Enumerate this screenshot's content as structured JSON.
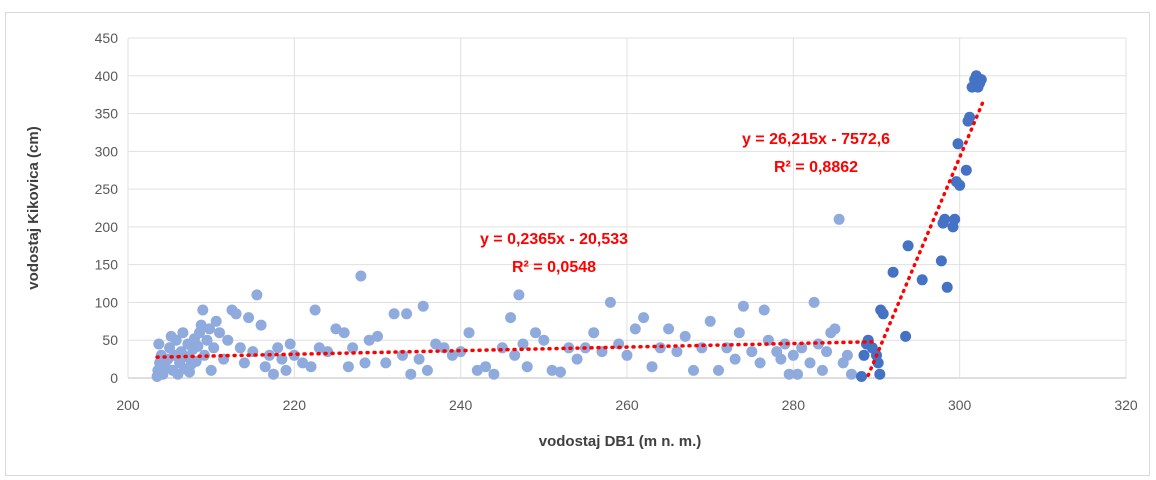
{
  "chart_data": {
    "type": "scatter",
    "xlabel": "vodostaj DB1  (m n. m.)",
    "ylabel": "vodostaj Kikovica  (cm)",
    "xlim": [
      200,
      320
    ],
    "ylim": [
      0,
      450
    ],
    "xticks": [
      "200",
      "220",
      "240",
      "260",
      "280",
      "300",
      "320"
    ],
    "yticks": [
      "0",
      "50",
      "100",
      "150",
      "200",
      "250",
      "300",
      "350",
      "400",
      "450"
    ],
    "grid": "vertical-and-horizontal",
    "colors": {
      "series_low": "#8faadc",
      "series_high": "#4472c4",
      "trendline": "#ff0000"
    },
    "series": [
      {
        "points": [
          [
            203.5,
            2
          ],
          [
            203.6,
            10
          ],
          [
            203.8,
            20
          ],
          [
            204,
            30
          ],
          [
            203.7,
            45
          ],
          [
            204.2,
            5
          ],
          [
            204.5,
            15
          ],
          [
            204.8,
            25
          ],
          [
            205,
            40
          ],
          [
            205.2,
            55
          ],
          [
            205.4,
            10
          ],
          [
            205.6,
            30
          ],
          [
            205.8,
            50
          ],
          [
            206,
            5
          ],
          [
            206.2,
            20
          ],
          [
            206.4,
            35
          ],
          [
            206.6,
            60
          ],
          [
            206.8,
            12
          ],
          [
            207,
            28
          ],
          [
            207.2,
            45
          ],
          [
            207.4,
            8
          ],
          [
            207.6,
            18
          ],
          [
            207.8,
            38
          ],
          [
            208,
            52
          ],
          [
            208.2,
            22
          ],
          [
            208.4,
            42
          ],
          [
            208.6,
            60
          ],
          [
            208.8,
            70
          ],
          [
            209,
            90
          ],
          [
            209.2,
            30
          ],
          [
            209.5,
            50
          ],
          [
            209.8,
            65
          ],
          [
            210,
            10
          ],
          [
            210.3,
            40
          ],
          [
            210.6,
            75
          ],
          [
            211,
            60
          ],
          [
            211.5,
            25
          ],
          [
            212,
            50
          ],
          [
            212.5,
            90
          ],
          [
            213,
            85
          ],
          [
            213.5,
            40
          ],
          [
            214,
            20
          ],
          [
            214.5,
            80
          ],
          [
            215,
            35
          ],
          [
            215.5,
            110
          ],
          [
            216,
            70
          ],
          [
            216.5,
            15
          ],
          [
            217,
            30
          ],
          [
            217.5,
            5
          ],
          [
            218,
            40
          ],
          [
            218.5,
            25
          ],
          [
            219,
            10
          ],
          [
            219.5,
            45
          ],
          [
            220,
            30
          ],
          [
            221,
            20
          ],
          [
            222,
            15
          ],
          [
            222.5,
            90
          ],
          [
            223,
            40
          ],
          [
            224,
            35
          ],
          [
            225,
            65
          ],
          [
            226,
            60
          ],
          [
            226.5,
            15
          ],
          [
            227,
            40
          ],
          [
            228,
            135
          ],
          [
            228.5,
            20
          ],
          [
            229,
            50
          ],
          [
            230,
            55
          ],
          [
            231,
            20
          ],
          [
            232,
            85
          ],
          [
            233,
            30
          ],
          [
            233.5,
            85
          ],
          [
            234,
            5
          ],
          [
            235,
            25
          ],
          [
            235.5,
            95
          ],
          [
            236,
            10
          ],
          [
            237,
            45
          ],
          [
            238,
            40
          ],
          [
            239,
            30
          ],
          [
            240,
            35
          ],
          [
            241,
            60
          ],
          [
            242,
            10
          ],
          [
            243,
            15
          ],
          [
            244,
            5
          ],
          [
            245,
            40
          ],
          [
            246,
            80
          ],
          [
            246.5,
            30
          ],
          [
            247,
            110
          ],
          [
            247.5,
            45
          ],
          [
            248,
            15
          ],
          [
            249,
            60
          ],
          [
            250,
            50
          ],
          [
            251,
            10
          ],
          [
            252,
            8
          ],
          [
            253,
            40
          ],
          [
            254,
            25
          ],
          [
            255,
            40
          ],
          [
            256,
            60
          ],
          [
            257,
            35
          ],
          [
            258,
            100
          ],
          [
            259,
            45
          ],
          [
            260,
            30
          ],
          [
            261,
            65
          ],
          [
            262,
            80
          ],
          [
            263,
            15
          ],
          [
            264,
            40
          ],
          [
            265,
            65
          ],
          [
            266,
            35
          ],
          [
            267,
            55
          ],
          [
            268,
            10
          ],
          [
            269,
            40
          ],
          [
            270,
            75
          ],
          [
            271,
            10
          ],
          [
            272,
            40
          ],
          [
            273,
            25
          ],
          [
            273.5,
            60
          ],
          [
            274,
            95
          ],
          [
            275,
            35
          ],
          [
            276,
            20
          ],
          [
            276.5,
            90
          ],
          [
            277,
            50
          ],
          [
            278,
            35
          ],
          [
            278.5,
            25
          ],
          [
            279,
            45
          ],
          [
            279.5,
            5
          ],
          [
            280,
            30
          ],
          [
            280.5,
            5
          ],
          [
            281,
            40
          ],
          [
            282,
            20
          ],
          [
            282.5,
            100
          ],
          [
            283,
            45
          ],
          [
            283.5,
            10
          ],
          [
            284,
            35
          ],
          [
            284.5,
            60
          ],
          [
            285,
            65
          ],
          [
            285.5,
            210
          ],
          [
            286,
            20
          ],
          [
            286.5,
            30
          ],
          [
            287,
            5
          ]
        ]
      },
      {
        "points": [
          [
            288.2,
            2
          ],
          [
            288.5,
            30
          ],
          [
            288.8,
            45
          ],
          [
            289,
            50
          ],
          [
            289.5,
            40
          ],
          [
            290,
            30
          ],
          [
            290.2,
            20
          ],
          [
            290.4,
            5
          ],
          [
            290.5,
            90
          ],
          [
            290.8,
            85
          ],
          [
            292,
            140
          ],
          [
            293.5,
            55
          ],
          [
            293.8,
            175
          ],
          [
            295.5,
            130
          ],
          [
            297.8,
            155
          ],
          [
            298,
            205
          ],
          [
            298.2,
            210
          ],
          [
            298.5,
            120
          ],
          [
            299.2,
            200
          ],
          [
            299.4,
            210
          ],
          [
            299.6,
            260
          ],
          [
            299.8,
            310
          ],
          [
            300,
            255
          ],
          [
            300.8,
            275
          ],
          [
            301,
            340
          ],
          [
            301.2,
            345
          ],
          [
            301.5,
            385
          ],
          [
            301.8,
            395
          ],
          [
            302,
            400
          ],
          [
            302.2,
            385
          ],
          [
            302.4,
            390
          ],
          [
            302.6,
            395
          ]
        ]
      }
    ],
    "trendlines": [
      {
        "equation": "y = 0,2365x - 20,533",
        "r2": "R² = 0,0548",
        "slope": 0.2365,
        "intercept": -20.533,
        "x_from": 203.5,
        "x_to": 290
      },
      {
        "equation": "y = 26,215x - 7572,6",
        "r2": "R² = 0,8862",
        "slope": 26.215,
        "intercept": -7572.6,
        "x_from": 289,
        "x_to": 302.8
      }
    ]
  }
}
